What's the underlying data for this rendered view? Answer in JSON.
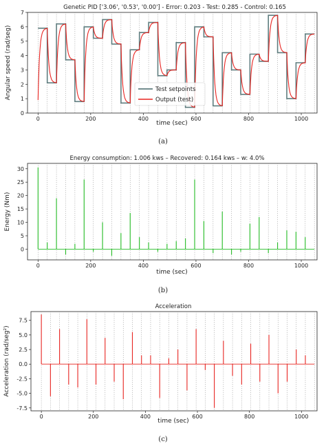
{
  "figure": {
    "captions": [
      "(a)",
      "(b)",
      "(c)"
    ]
  },
  "chart_data": [
    {
      "type": "line",
      "title": "Genetic PID ['3.06', '0.53', '0.00'] - Error: 0.203 - Test: 0.285 - Control: 0.165",
      "xlabel": "time (sec)",
      "ylabel": "Angular speed (rad/seg)",
      "xlim": [
        -40,
        1060
      ],
      "ylim": [
        0,
        7
      ],
      "grid": "vertical-dotted",
      "legend_position": "lower-right",
      "xticks": [
        0,
        200,
        400,
        600,
        800,
        1000
      ],
      "yticks": [
        0,
        1,
        2,
        3,
        4,
        5,
        6,
        7
      ],
      "setpoint_color": "#5f7d7f",
      "output_color": "#e8231f",
      "series": [
        {
          "name": "Test setpoints",
          "step_times": [
            0,
            35,
            70,
            105,
            140,
            175,
            210,
            245,
            280,
            315,
            350,
            385,
            420,
            455,
            490,
            525,
            560,
            595,
            630,
            665,
            700,
            735,
            770,
            805,
            840,
            875,
            910,
            945,
            980,
            1015,
            1050
          ],
          "levels": [
            5.9,
            2.1,
            6.2,
            3.7,
            0.8,
            6.0,
            5.2,
            6.5,
            4.8,
            0.7,
            4.4,
            5.6,
            6.3,
            2.6,
            3.0,
            4.9,
            0.4,
            6.0,
            5.3,
            0.5,
            4.2,
            3.0,
            1.3,
            4.1,
            3.6,
            6.8,
            4.2,
            1.0,
            3.5,
            5.5,
            6.7
          ]
        },
        {
          "name": "Output (test)",
          "initial_value": 0.9
        }
      ]
    },
    {
      "type": "line",
      "title": "Energy consumption: 1.006 kws – Recovered: 0.164 kws – w: 4.0%",
      "xlabel": "time (sec)",
      "ylabel": "Energy (Nm)",
      "xlim": [
        -40,
        1060
      ],
      "ylim": [
        -4,
        32
      ],
      "grid": "vertical-dotted",
      "xticks": [
        0,
        200,
        400,
        600,
        800,
        1000
      ],
      "yticks": [
        0,
        5,
        10,
        15,
        20,
        25,
        30
      ],
      "line_color": "#22bb22",
      "spikes": [
        {
          "t": 0,
          "v": 30.5
        },
        {
          "t": 35,
          "v": 2.5
        },
        {
          "t": 70,
          "v": 19.0
        },
        {
          "t": 105,
          "v": -2.0
        },
        {
          "t": 140,
          "v": 2.0
        },
        {
          "t": 175,
          "v": 26.0
        },
        {
          "t": 210,
          "v": -1.0
        },
        {
          "t": 245,
          "v": 10.0
        },
        {
          "t": 280,
          "v": -2.5
        },
        {
          "t": 315,
          "v": 6.0
        },
        {
          "t": 350,
          "v": 13.5
        },
        {
          "t": 385,
          "v": 4.5
        },
        {
          "t": 420,
          "v": 2.5
        },
        {
          "t": 455,
          "v": -1.0
        },
        {
          "t": 490,
          "v": 2.0
        },
        {
          "t": 525,
          "v": 3.0
        },
        {
          "t": 560,
          "v": 4.0
        },
        {
          "t": 595,
          "v": 26.0
        },
        {
          "t": 630,
          "v": 10.5
        },
        {
          "t": 665,
          "v": -1.5
        },
        {
          "t": 700,
          "v": 14.0
        },
        {
          "t": 735,
          "v": -2.0
        },
        {
          "t": 770,
          "v": -1.0
        },
        {
          "t": 805,
          "v": 9.5
        },
        {
          "t": 840,
          "v": 12.0
        },
        {
          "t": 875,
          "v": -1.5
        },
        {
          "t": 910,
          "v": 2.5
        },
        {
          "t": 945,
          "v": 7.0
        },
        {
          "t": 980,
          "v": 6.5
        },
        {
          "t": 1015,
          "v": 4.5
        }
      ]
    },
    {
      "type": "line",
      "title": "Acceleration",
      "xlabel": "time (sec)",
      "ylabel": "Acceleration (rad/seg²)",
      "xlim": [
        -40,
        1060
      ],
      "ylim": [
        -8,
        9
      ],
      "grid": "vertical-dotted",
      "xticks": [
        0,
        200,
        400,
        600,
        800,
        1000
      ],
      "yticks": [
        -7.5,
        -5.0,
        -2.5,
        0.0,
        2.5,
        5.0,
        7.5
      ],
      "line_color": "#e8231f",
      "spikes": [
        {
          "t": 0,
          "v": 8.5
        },
        {
          "t": 35,
          "v": -5.5
        },
        {
          "t": 70,
          "v": 6.0
        },
        {
          "t": 105,
          "v": -3.5
        },
        {
          "t": 140,
          "v": -4.0
        },
        {
          "t": 175,
          "v": 7.7
        },
        {
          "t": 210,
          "v": -3.5
        },
        {
          "t": 245,
          "v": 4.5
        },
        {
          "t": 280,
          "v": -3.0
        },
        {
          "t": 315,
          "v": -6.0
        },
        {
          "t": 350,
          "v": 5.5
        },
        {
          "t": 385,
          "v": 1.5
        },
        {
          "t": 420,
          "v": 1.5
        },
        {
          "t": 455,
          "v": -5.8
        },
        {
          "t": 490,
          "v": 1.0
        },
        {
          "t": 525,
          "v": 2.5
        },
        {
          "t": 560,
          "v": -4.5
        },
        {
          "t": 595,
          "v": 6.0
        },
        {
          "t": 630,
          "v": -1.0
        },
        {
          "t": 665,
          "v": -7.5
        },
        {
          "t": 700,
          "v": 4.0
        },
        {
          "t": 735,
          "v": -2.0
        },
        {
          "t": 770,
          "v": -3.5
        },
        {
          "t": 805,
          "v": 3.5
        },
        {
          "t": 840,
          "v": -3.0
        },
        {
          "t": 875,
          "v": 5.0
        },
        {
          "t": 910,
          "v": -5.0
        },
        {
          "t": 945,
          "v": -3.0
        },
        {
          "t": 980,
          "v": 2.5
        },
        {
          "t": 1015,
          "v": 1.5
        }
      ]
    }
  ]
}
